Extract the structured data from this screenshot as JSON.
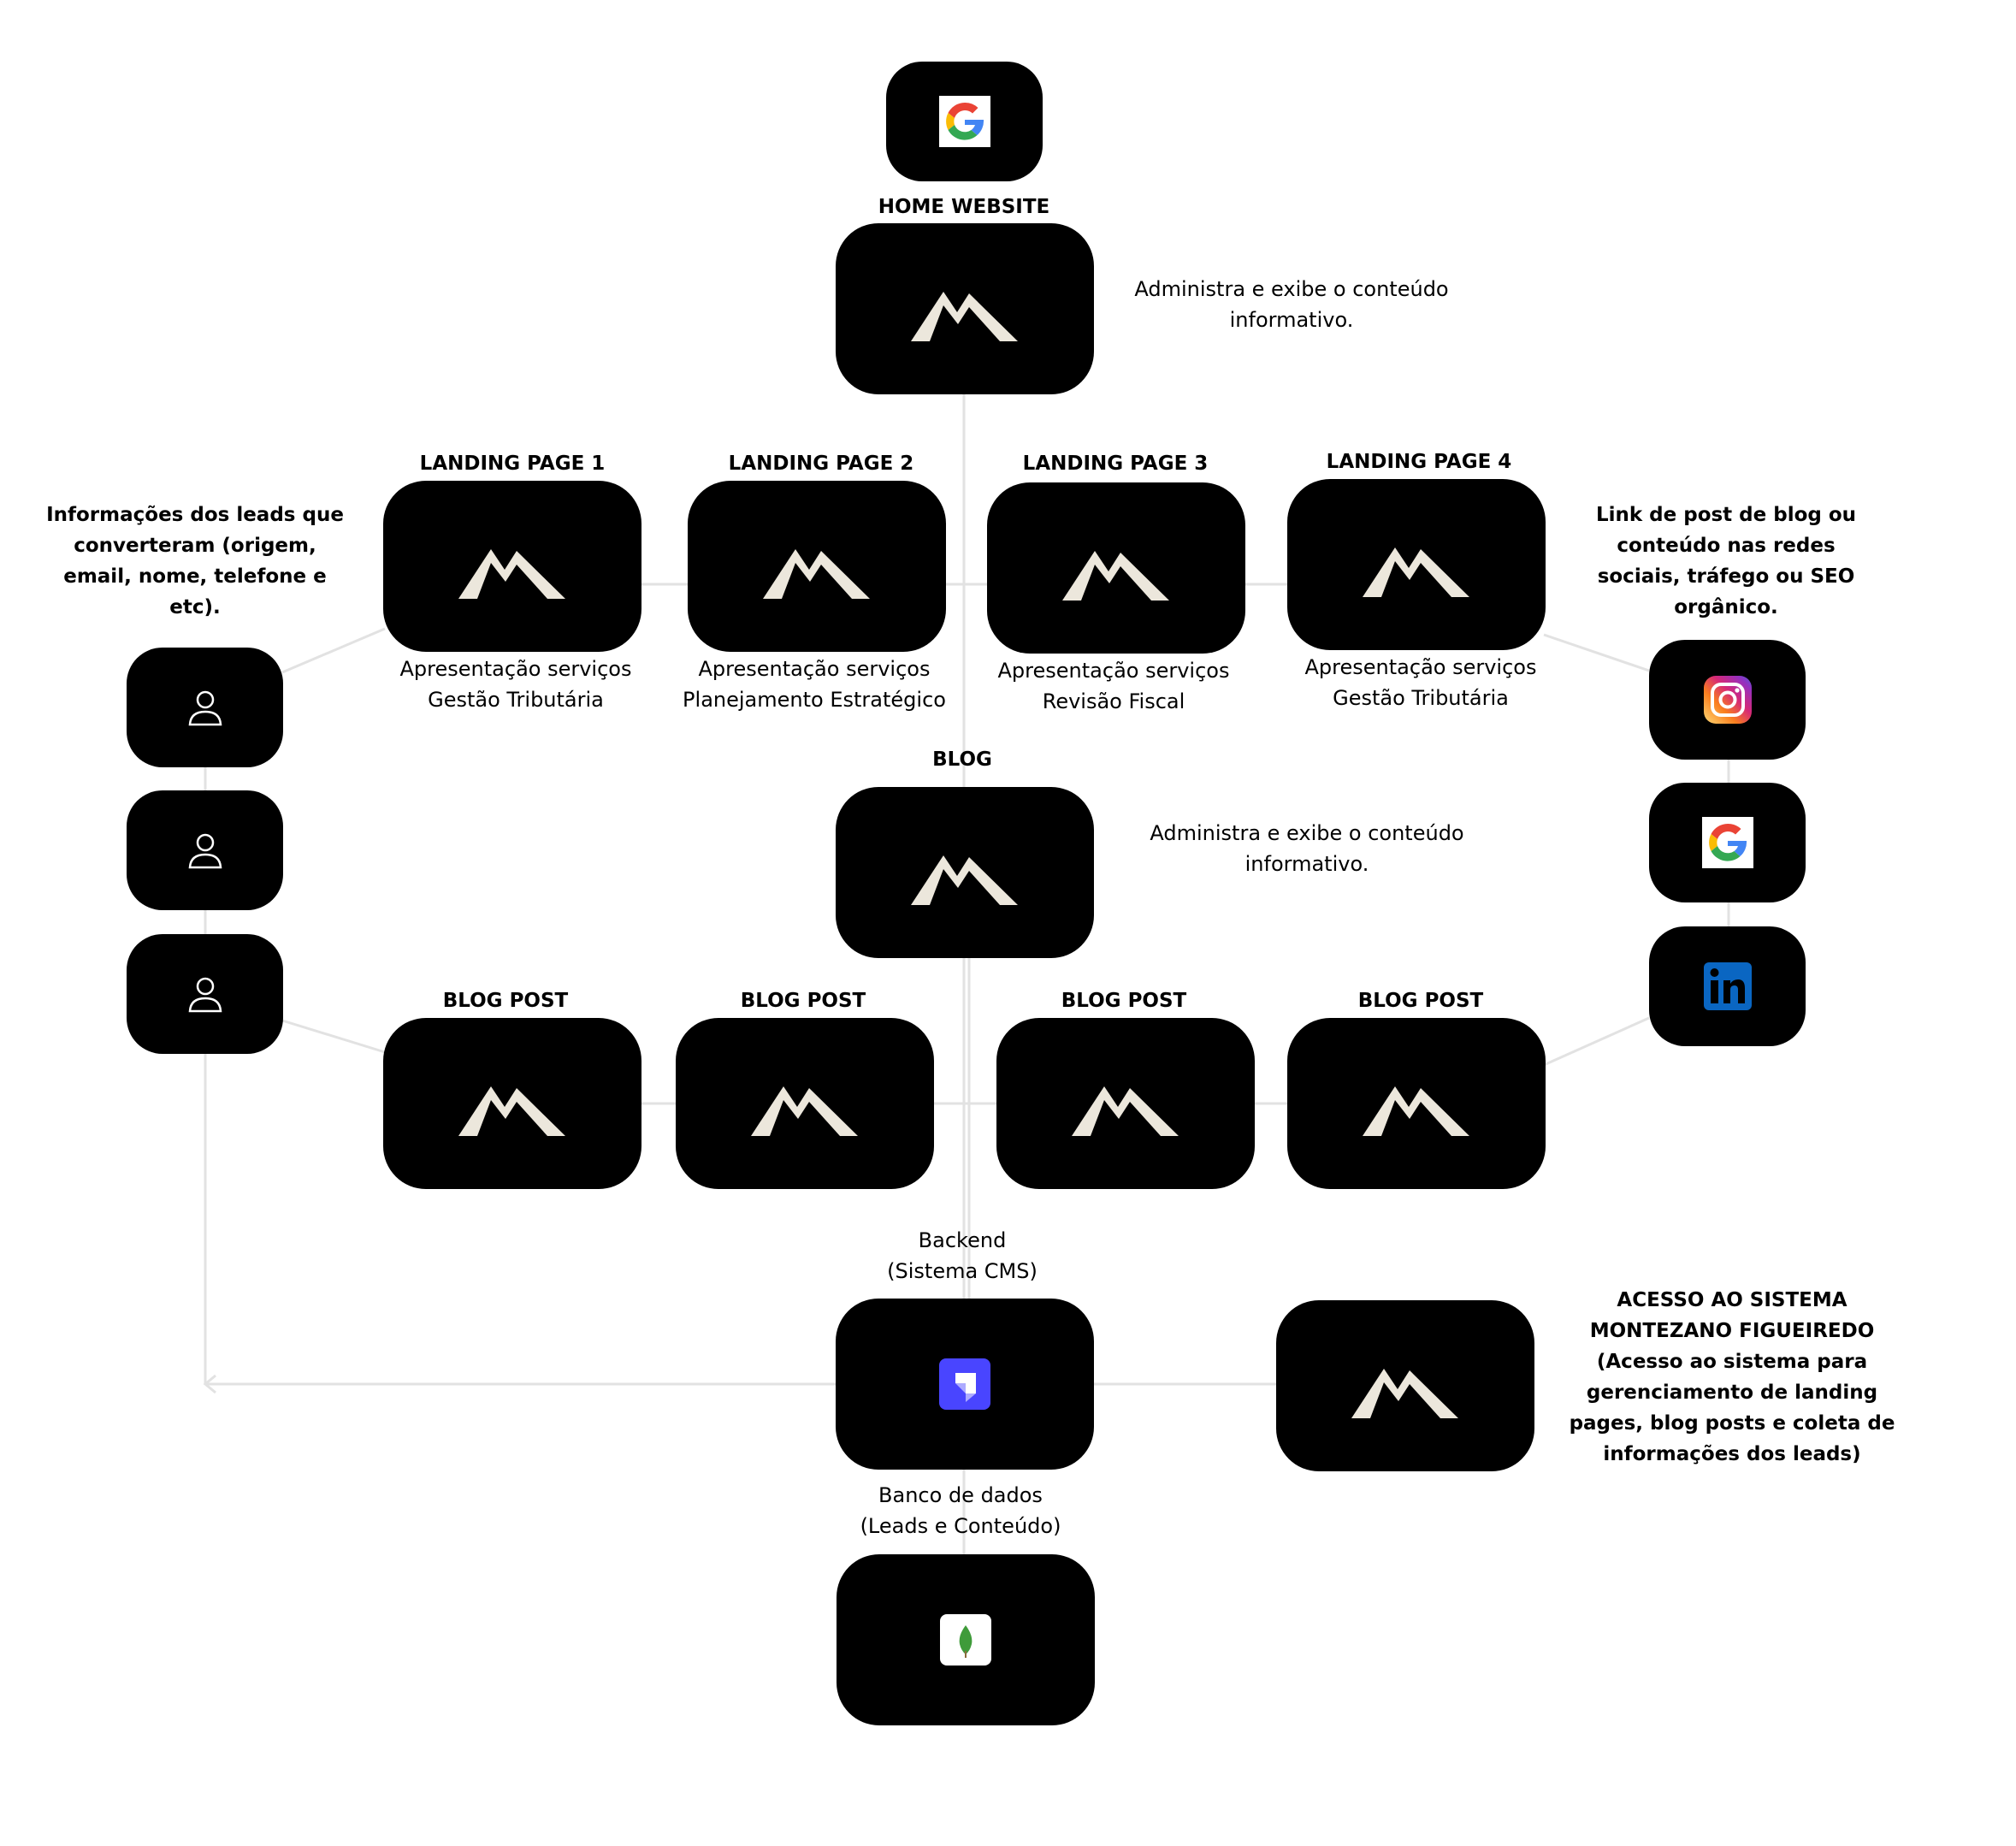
{
  "colors": {
    "node_bg": "#000000",
    "logo": "#ece7dc",
    "connector": "#e2e2e2",
    "strapi": "#4945ff",
    "mongo_leaf": "#3f9b3a",
    "linkedin": "#0a66c2"
  },
  "google_top": {
    "icon": "google-icon"
  },
  "home": {
    "label": "HOME WEBSITE",
    "desc": [
      "Administra e exibe o conteúdo",
      "informativo."
    ]
  },
  "landing_pages": [
    {
      "label": "LANDING PAGE 1",
      "desc": [
        "Apresentação serviços",
        "Gestão Tributária"
      ]
    },
    {
      "label": "LANDING PAGE 2",
      "desc": [
        "Apresentação serviços",
        "Planejamento Estratégico"
      ]
    },
    {
      "label": "LANDING PAGE 3",
      "desc": [
        "Apresentação serviços",
        "Revisão Fiscal"
      ]
    },
    {
      "label": "LANDING PAGE 4",
      "desc": [
        "Apresentação serviços",
        "Gestão Tributária"
      ]
    }
  ],
  "blog": {
    "label": "BLOG",
    "desc": [
      "Administra e exibe o conteúdo",
      "informativo."
    ]
  },
  "blog_posts": [
    {
      "label": "BLOG POST"
    },
    {
      "label": "BLOG POST"
    },
    {
      "label": "BLOG POST"
    },
    {
      "label": "BLOG POST"
    }
  ],
  "leads": {
    "note": [
      "Informações dos leads que",
      "converteram (origem,",
      "email, nome, telefone e",
      "etc)."
    ],
    "icons": [
      "user-icon",
      "user-icon",
      "user-icon"
    ]
  },
  "traffic": {
    "note": [
      "Link de post de blog ou",
      "conteúdo nas redes",
      "sociais, tráfego ou SEO",
      "orgânico."
    ],
    "icons": [
      "instagram-icon",
      "google-icon",
      "linkedin-icon"
    ]
  },
  "backend": {
    "label": [
      "Backend",
      "(Sistema CMS)"
    ],
    "icon": "strapi-icon"
  },
  "database": {
    "label": [
      "Banco de dados",
      "(Leads e Conteúdo)"
    ],
    "icon": "mongodb-icon"
  },
  "system_access": {
    "note": [
      "ACESSO AO SISTEMA",
      "MONTEZANO FIGUEIREDO",
      "(Acesso ao sistema para",
      "gerenciamento de landing",
      "pages, blog posts e coleta de",
      "informações dos leads)"
    ]
  }
}
